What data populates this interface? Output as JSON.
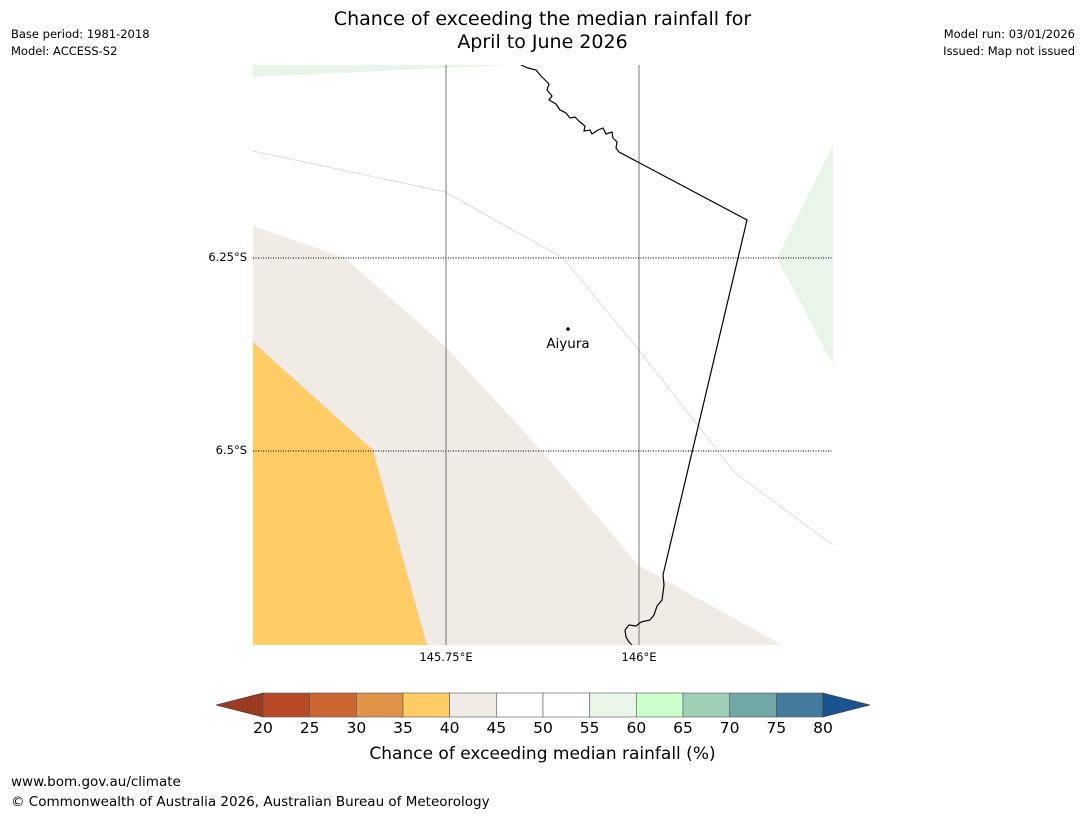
{
  "header": {
    "title_line1": "Chance of exceeding the median rainfall for",
    "title_line2": "April to June 2026",
    "base_period": "Base period: 1981-2018",
    "model": "Model: ACCESS-S2",
    "model_run": "Model run: 03/01/2026",
    "issued": "Issued: Map not issued"
  },
  "map": {
    "place_name": "Aiyura",
    "lat_labels": [
      "6.25°S",
      "6.5°S"
    ],
    "lon_labels": [
      "145.75°E",
      "146°E"
    ],
    "colors": {
      "band_30_35": "#ffcc66",
      "band_35_40": "#f0ebe4",
      "band_55_60": "#e9f5e9",
      "border": "#000000"
    }
  },
  "colorbar": {
    "ticks": [
      "20",
      "25",
      "30",
      "35",
      "40",
      "45",
      "50",
      "55",
      "60",
      "65",
      "70",
      "75",
      "80"
    ],
    "colors": [
      "#b84a28",
      "#cc6633",
      "#e09448",
      "#ffcc66",
      "#f0ebe4",
      "#ffffff",
      "#ffffff",
      "#e9f5e9",
      "#ccffcc",
      "#9ed0b8",
      "#6fa6a6",
      "#427b9c"
    ],
    "under_color": "#993a22",
    "over_color": "#1a5490",
    "label": "Chance of exceeding median rainfall (%)"
  },
  "footer": {
    "url": "www.bom.gov.au/climate",
    "copyright": "© Commonwealth of Australia 2026, Australian Bureau of Meteorology"
  }
}
